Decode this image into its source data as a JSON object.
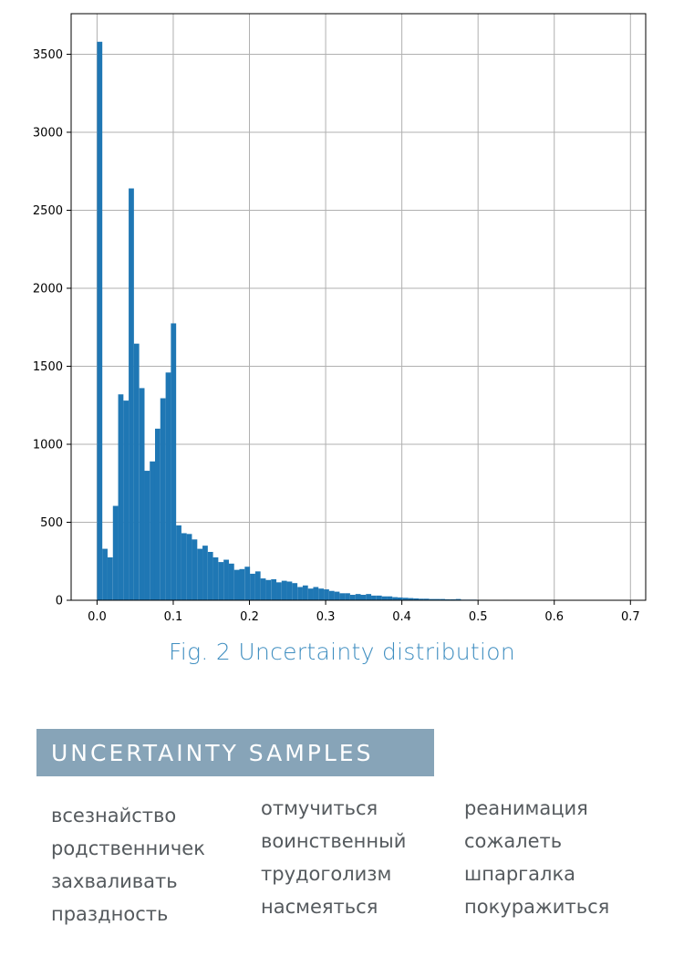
{
  "chart_data": {
    "type": "bar",
    "title": "",
    "xlabel": "",
    "ylabel": "",
    "xlim": [
      -0.034,
      0.72
    ],
    "ylim": [
      0,
      3760
    ],
    "grid": true,
    "bar_color": "#1f77b4",
    "bin_width": 0.00692,
    "xticks": [
      "0.0",
      "0.1",
      "0.2",
      "0.3",
      "0.4",
      "0.5",
      "0.6",
      "0.7"
    ],
    "xtick_values": [
      0.0,
      0.1,
      0.2,
      0.3,
      0.4,
      0.5,
      0.6,
      0.7
    ],
    "yticks": [
      "0",
      "500",
      "1000",
      "1500",
      "2000",
      "2500",
      "3000",
      "3500"
    ],
    "ytick_values": [
      0,
      500,
      1000,
      1500,
      2000,
      2500,
      3000,
      3500
    ],
    "bin_starts": [
      0.0,
      0.0069,
      0.0138,
      0.0208,
      0.0277,
      0.0346,
      0.0415,
      0.0484,
      0.0554,
      0.0623,
      0.0692,
      0.0761,
      0.083,
      0.09,
      0.0969,
      0.1038,
      0.1107,
      0.1176,
      0.1246,
      0.1315,
      0.1384,
      0.1453,
      0.1522,
      0.1592,
      0.1661,
      0.173,
      0.1799,
      0.1868,
      0.1938,
      0.2007,
      0.2076,
      0.2145,
      0.2214,
      0.2284,
      0.2353,
      0.2422,
      0.2491,
      0.256,
      0.263,
      0.2699,
      0.2768,
      0.2837,
      0.2906,
      0.2976,
      0.3045,
      0.3114,
      0.3183,
      0.3252,
      0.3322,
      0.3391,
      0.346,
      0.3529,
      0.3598,
      0.3668,
      0.3737,
      0.3806,
      0.3875,
      0.3944,
      0.4014,
      0.4083,
      0.4152,
      0.4221,
      0.429,
      0.436,
      0.4429,
      0.4498,
      0.4567,
      0.4636,
      0.4706,
      0.4775,
      0.4844,
      0.4913,
      0.4982,
      0.5052,
      0.5121,
      0.519,
      0.5259,
      0.5328,
      0.5398,
      0.5467,
      0.5536,
      0.5605,
      0.5674,
      0.5744,
      0.5813,
      0.5882,
      0.5951,
      0.602,
      0.609,
      0.6159,
      0.6228,
      0.6297,
      0.6366,
      0.6436,
      0.6505,
      0.6574,
      0.6643,
      0.6712,
      0.6782
    ],
    "values": [
      3580,
      330,
      275,
      605,
      1320,
      1280,
      2640,
      1645,
      1360,
      830,
      890,
      1100,
      1295,
      1460,
      1775,
      480,
      430,
      425,
      390,
      330,
      350,
      310,
      275,
      245,
      260,
      235,
      195,
      200,
      215,
      170,
      185,
      140,
      130,
      135,
      115,
      125,
      120,
      110,
      85,
      95,
      75,
      85,
      75,
      70,
      60,
      55,
      45,
      45,
      35,
      40,
      35,
      40,
      30,
      30,
      25,
      25,
      20,
      18,
      16,
      14,
      12,
      10,
      10,
      8,
      8,
      8,
      6,
      6,
      8,
      4,
      4,
      4,
      3,
      3,
      2,
      2,
      2,
      3,
      2,
      2,
      2,
      2,
      2,
      1,
      1,
      1,
      1,
      1,
      1,
      1,
      1,
      1,
      1,
      1,
      1,
      1,
      1,
      1,
      1
    ]
  },
  "caption": "Fig. 2 Uncertainty distribution",
  "section": {
    "heading": "UNCERTAINTY SAMPLES",
    "columns": [
      [
        "всезнайство",
        "родственничек",
        "захваливать",
        "праздность"
      ],
      [
        "отмучиться",
        "воинственный",
        "трудоголизм",
        "насмеяться"
      ],
      [
        "реанимация",
        "сожалеть",
        "шпаргалка",
        "покуражиться"
      ]
    ]
  },
  "colors": {
    "caption": "#3f8ec0",
    "banner": "#87a4b8",
    "words": "#555a5e"
  }
}
